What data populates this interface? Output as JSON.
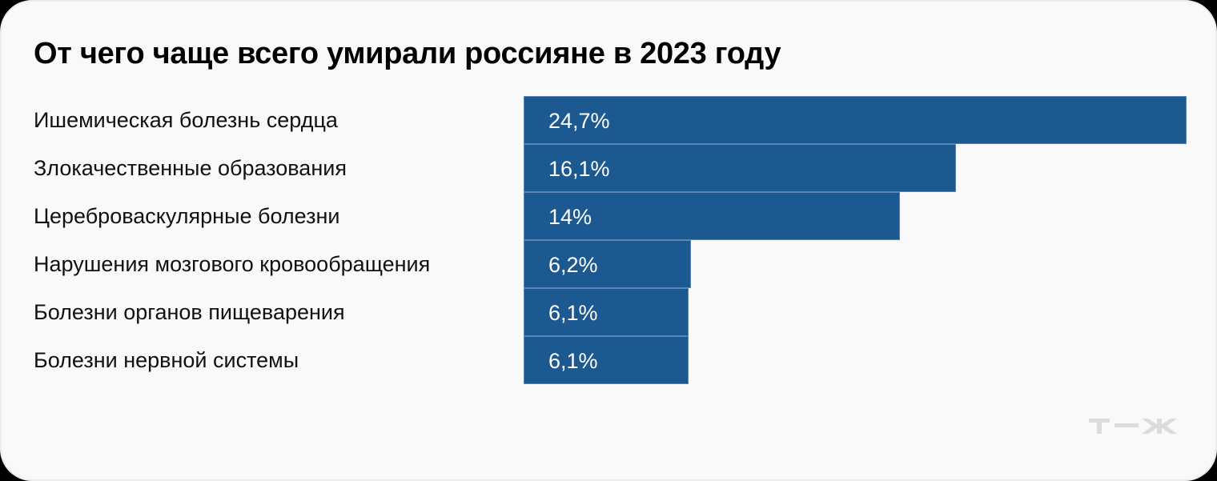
{
  "title": "От чего чаще всего умирали россияне в 2023 году",
  "colors": {
    "bar": "#1c5990",
    "bar_border": "#5a86b3",
    "background": "#f9f9f9",
    "logo": "#dcdcdc"
  },
  "bars": [
    {
      "label": "Ишемическая болезнь сердца",
      "value_label": "24,7%",
      "value": 24.7
    },
    {
      "label": "Злокачественные образования",
      "value_label": "16,1%",
      "value": 16.1
    },
    {
      "label": "Цереброваскулярные болезни",
      "value_label": "14%",
      "value": 14
    },
    {
      "label": "Нарушения мозгового кровообращения",
      "value_label": "6,2%",
      "value": 6.2
    },
    {
      "label": "Болезни органов пищеварения",
      "value_label": "6,1%",
      "value": 6.1
    },
    {
      "label": "Болезни нервной системы",
      "value_label": "6,1%",
      "value": 6.1
    }
  ],
  "logo": {
    "text": "Т—Ж"
  },
  "chart_data": {
    "type": "bar",
    "orientation": "horizontal",
    "title": "От чего чаще всего умирали россияне в 2023 году",
    "categories": [
      "Ишемическая болезнь сердца",
      "Злокачественные образования",
      "Цереброваскулярные болезни",
      "Нарушения мозгового кровообращения",
      "Болезни органов пищеварения",
      "Болезни нервной системы"
    ],
    "values": [
      24.7,
      16.1,
      14,
      6.2,
      6.1,
      6.1
    ],
    "value_labels": [
      "24,7%",
      "16,1%",
      "14%",
      "6,2%",
      "6,1%",
      "6,1%"
    ],
    "unit": "%",
    "xlabel": "",
    "ylabel": "",
    "grid": false,
    "legend": null
  }
}
